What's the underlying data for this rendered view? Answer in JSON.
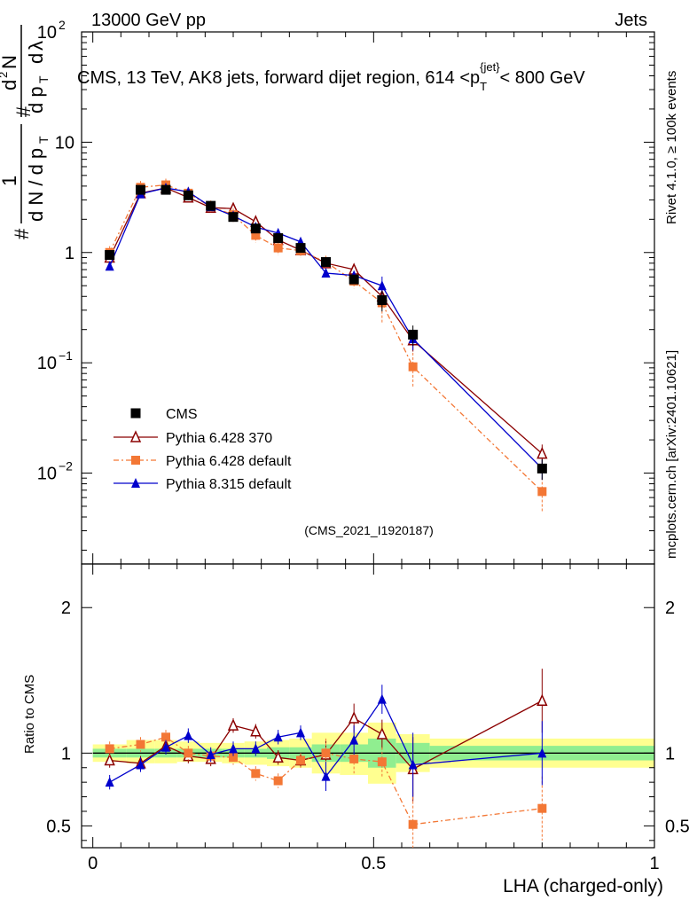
{
  "header": {
    "energy": "13000 GeV pp",
    "category": "Jets"
  },
  "side": {
    "rivet": "Rivet 4.1.0, ≥ 100k events",
    "source": "mcplots.cern.ch [arXiv:2401.10621]"
  },
  "chart_data": [
    {
      "type": "scatter",
      "title": "CMS, 13 TeV, AK8 jets, forward dijet region, 614 <p_T^{jet}< 800 GeV",
      "ylabel": "1/(dN/dp_T) d²N/(dp_T dλ)",
      "yscale": "log",
      "ylim": [
        0.0015,
        100
      ],
      "xlim": [
        -0.02,
        1.0
      ],
      "watermark": "(CMS_2021_I1920187)",
      "legend": [
        "CMS",
        "Pythia 6.428 370",
        "Pythia 6.428 default",
        "Pythia 8.315 default"
      ],
      "legend_position": "lower-left",
      "x": [
        0.03,
        0.085,
        0.13,
        0.17,
        0.21,
        0.25,
        0.29,
        0.33,
        0.37,
        0.415,
        0.465,
        0.515,
        0.57,
        0.8
      ],
      "series": [
        {
          "name": "CMS",
          "color": "#000000",
          "marker": "square",
          "values": [
            0.95,
            3.7,
            3.7,
            3.3,
            2.65,
            2.1,
            1.65,
            1.35,
            1.1,
            0.82,
            0.57,
            0.37,
            0.18,
            0.011
          ]
        },
        {
          "name": "Pythia 6.428 370",
          "color": "#8b0000",
          "marker": "open-triangle",
          "values": [
            0.9,
            3.45,
            3.85,
            3.15,
            2.55,
            2.5,
            1.9,
            1.3,
            1.05,
            0.8,
            0.7,
            0.4,
            0.16,
            0.015
          ]
        },
        {
          "name": "Pythia 6.428 default",
          "color": "#f37735",
          "marker": "square",
          "dashed": true,
          "values": [
            1.0,
            3.9,
            4.1,
            3.45,
            2.6,
            2.2,
            1.43,
            1.1,
            1.04,
            0.82,
            0.55,
            0.35,
            0.092,
            0.0068
          ]
        },
        {
          "name": "Pythia 8.315 default",
          "color": "#0000cc",
          "marker": "triangle",
          "values": [
            0.75,
            3.4,
            3.85,
            3.55,
            2.6,
            2.15,
            1.7,
            1.5,
            1.25,
            0.65,
            0.62,
            0.5,
            0.165,
            0.011
          ]
        }
      ]
    },
    {
      "type": "scatter",
      "ylabel": "Ratio to CMS",
      "xlabel": "LHA (charged-only)",
      "ylim": [
        0.35,
        2.3
      ],
      "xlim": [
        -0.02,
        1.0
      ],
      "x_ticks": [
        "0",
        "0.5",
        "1"
      ],
      "y_ticks_left": [
        "0.5",
        "1",
        "2"
      ],
      "y_ticks_right": [
        "0.5",
        "1",
        "2"
      ],
      "uncertainty_bins": {
        "edges": [
          0,
          0.06,
          0.11,
          0.15,
          0.19,
          0.23,
          0.27,
          0.31,
          0.35,
          0.39,
          0.44,
          0.49,
          0.54,
          0.6,
          1.0
        ],
        "stat_low": [
          0.97,
          0.97,
          0.97,
          0.97,
          0.97,
          0.97,
          0.97,
          0.96,
          0.96,
          0.94,
          0.94,
          0.9,
          0.93,
          0.95
        ],
        "stat_high": [
          1.03,
          1.03,
          1.03,
          1.03,
          1.03,
          1.03,
          1.03,
          1.04,
          1.04,
          1.06,
          1.06,
          1.1,
          1.07,
          1.05
        ],
        "total_low": [
          0.94,
          0.93,
          0.93,
          0.94,
          0.94,
          0.93,
          0.92,
          0.91,
          0.9,
          0.86,
          0.85,
          0.79,
          0.87,
          0.9
        ],
        "total_high": [
          1.06,
          1.09,
          1.09,
          1.08,
          1.07,
          1.07,
          1.08,
          1.09,
          1.1,
          1.14,
          1.14,
          1.21,
          1.13,
          1.1
        ]
      },
      "series": [
        {
          "name": "Pythia 6.428 370",
          "color": "#8b0000",
          "marker": "open-triangle",
          "values": [
            0.95,
            0.93,
            1.05,
            0.98,
            0.96,
            1.19,
            1.15,
            0.97,
            0.95,
            0.99,
            1.24,
            1.13,
            0.89,
            1.36
          ]
        },
        {
          "name": "Pythia 6.428 default",
          "color": "#f37735",
          "marker": "square",
          "dashed": true,
          "values": [
            1.03,
            1.06,
            1.11,
            1.0,
            0.98,
            0.97,
            0.86,
            0.81,
            0.95,
            1.0,
            0.96,
            0.94,
            0.51,
            0.62
          ]
        },
        {
          "name": "Pythia 8.315 default",
          "color": "#0000cc",
          "marker": "triangle",
          "values": [
            0.8,
            0.92,
            1.04,
            1.12,
            0.99,
            1.03,
            1.03,
            1.11,
            1.14,
            0.84,
            1.09,
            1.37,
            0.92,
            1.0
          ]
        }
      ]
    }
  ]
}
